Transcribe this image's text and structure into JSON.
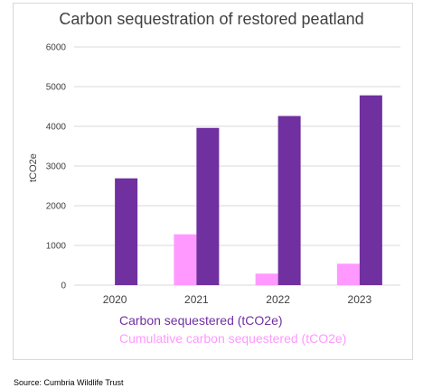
{
  "chart_data": {
    "type": "bar",
    "title": "Carbon sequestration of restored peatland",
    "ylabel": "tCO2e",
    "xlabel": "",
    "categories": [
      "2020",
      "2021",
      "2022",
      "2023"
    ],
    "ylim": [
      0,
      6000
    ],
    "yticks": [
      0,
      1000,
      2000,
      3000,
      4000,
      5000,
      6000
    ],
    "grid": true,
    "legend_position": "bottom",
    "series": [
      {
        "name": "Cumulative carbon sequestered (tCO2e)",
        "color": "#ff99ff",
        "values": [
          0,
          1280,
          290,
          540
        ]
      },
      {
        "name": "Carbon sequestered (tCO2e)",
        "color": "#7030a0",
        "values": [
          2690,
          3960,
          4260,
          4780
        ]
      }
    ]
  },
  "legend": {
    "primary": "Carbon sequestered (tCO2e)",
    "secondary": "Cumulative carbon sequestered (tCO2e)"
  },
  "source": "Source: Cumbria Wildlife Trust"
}
